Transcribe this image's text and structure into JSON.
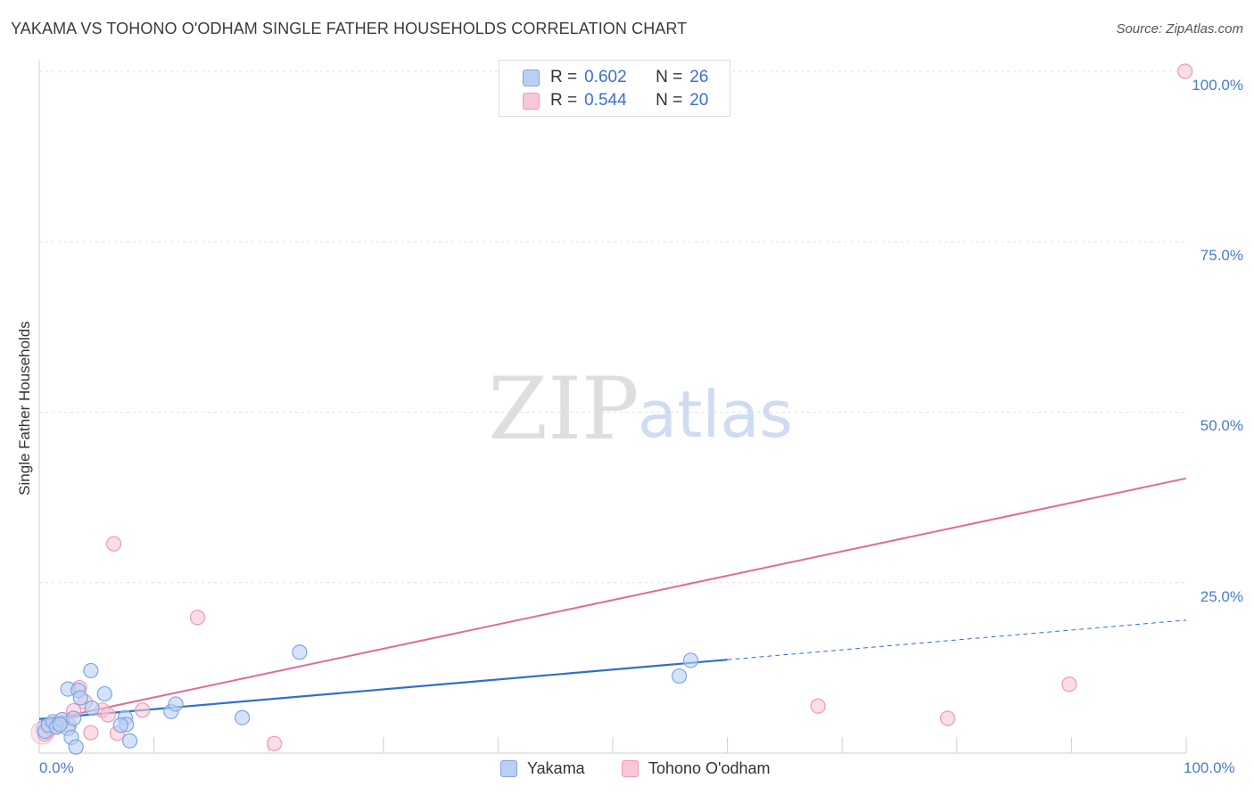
{
  "header": {
    "title": "YAKAMA VS TOHONO O'ODHAM SINGLE FATHER HOUSEHOLDS CORRELATION CHART",
    "source": "Source: ZipAtlas.com"
  },
  "watermark": {
    "zip": "ZIP",
    "atlas": "atlas"
  },
  "colors": {
    "yakama_fill": "#b9d0f4",
    "yakama_stroke": "#7fa6e0",
    "yakama_line": "#2e6fd0",
    "tohono_fill": "#f9c7d6",
    "tohono_stroke": "#ec9bb4",
    "tohono_line": "#e26b96",
    "tick_text": "#4a7cc9"
  },
  "legend": {
    "series": [
      {
        "r_label": "R =",
        "r_value": "0.602",
        "n_label": "N =",
        "n_value": "26"
      },
      {
        "r_label": "R =",
        "r_value": "0.544",
        "n_label": "N =",
        "n_value": "20"
      }
    ],
    "bottom": [
      "Yakama",
      "Tohono O'odham"
    ]
  },
  "chart_data": {
    "type": "scatter",
    "title": "YAKAMA VS TOHONO O'ODHAM SINGLE FATHER HOUSEHOLDS CORRELATION CHART",
    "xlabel": "",
    "ylabel": "Single Father Households",
    "xlim": [
      0,
      100
    ],
    "ylim": [
      0,
      100
    ],
    "x_tick_labels": [
      "0.0%",
      "100.0%"
    ],
    "y_tick_labels": [
      "100.0%",
      "75.0%",
      "50.0%",
      "25.0%"
    ],
    "y_ticks": [
      100,
      75,
      50,
      25
    ],
    "grid": true,
    "series": [
      {
        "name": "Yakama",
        "r": 0.602,
        "n": 26,
        "points": [
          [
            0.5,
            3.2
          ],
          [
            0.8,
            4.1
          ],
          [
            1.2,
            4.6
          ],
          [
            1.5,
            3.8
          ],
          [
            2.0,
            4.9
          ],
          [
            2.5,
            3.6
          ],
          [
            1.8,
            4.2
          ],
          [
            3.0,
            5.1
          ],
          [
            2.5,
            9.4
          ],
          [
            3.4,
            9.2
          ],
          [
            4.5,
            12.1
          ],
          [
            3.6,
            8.1
          ],
          [
            5.7,
            8.7
          ],
          [
            4.6,
            6.6
          ],
          [
            2.8,
            2.3
          ],
          [
            3.2,
            0.9
          ],
          [
            7.9,
            1.8
          ],
          [
            7.5,
            5.2
          ],
          [
            7.6,
            4.2
          ],
          [
            11.5,
            6.1
          ],
          [
            11.9,
            7.2
          ],
          [
            17.7,
            5.2
          ],
          [
            22.7,
            14.8
          ],
          [
            55.8,
            11.3
          ],
          [
            56.8,
            13.6
          ],
          [
            7.1,
            4.1
          ]
        ],
        "trend": {
          "x0": 0,
          "y0": 5.0,
          "x1": 60,
          "y1": 13.7,
          "dash_x1": 100,
          "dash_y1": 19.5
        }
      },
      {
        "name": "Tohono O'odham",
        "r": 0.544,
        "n": 20,
        "points": [
          [
            0.5,
            2.8
          ],
          [
            1.0,
            3.6
          ],
          [
            2.0,
            4.5
          ],
          [
            3.5,
            9.6
          ],
          [
            4.0,
            7.5
          ],
          [
            3.0,
            6.2
          ],
          [
            5.5,
            6.3
          ],
          [
            6.0,
            5.6
          ],
          [
            9.0,
            6.3
          ],
          [
            6.5,
            30.7
          ],
          [
            13.8,
            19.9
          ],
          [
            6.8,
            2.9
          ],
          [
            4.5,
            3.0
          ],
          [
            20.5,
            1.4
          ],
          [
            67.9,
            6.9
          ],
          [
            79.2,
            5.1
          ],
          [
            89.8,
            10.1
          ],
          [
            99.9,
            100.0
          ],
          [
            1.5,
            3.9
          ],
          [
            2.6,
            4.1
          ]
        ],
        "trend": {
          "x0": 0,
          "y0": 4.6,
          "x1": 100,
          "y1": 40.3
        }
      }
    ]
  }
}
